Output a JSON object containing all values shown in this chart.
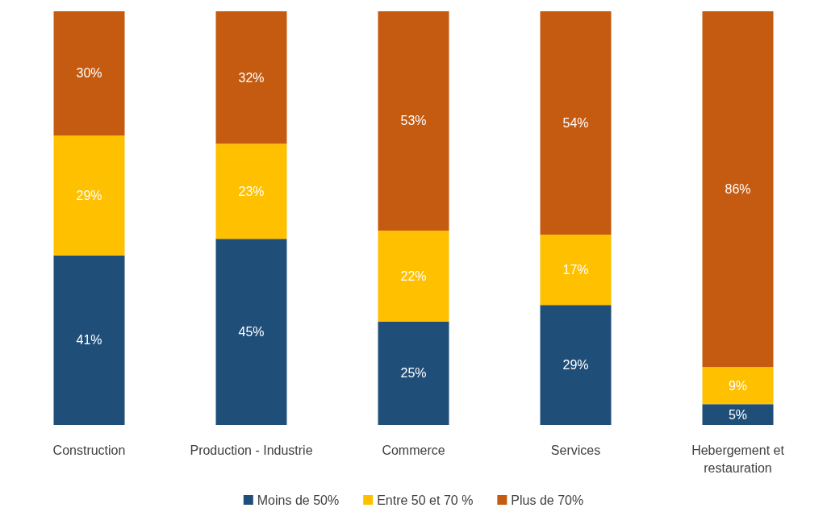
{
  "chart_data": {
    "type": "bar",
    "stacked": true,
    "categories": [
      "Construction",
      "Production - Industrie",
      "Commerce",
      "Services",
      "Hebergement et restauration"
    ],
    "series": [
      {
        "name": "Moins de 50%",
        "color": "#1f4e79",
        "values": [
          41,
          45,
          25,
          29,
          5
        ],
        "value_labels": [
          "41%",
          "45%",
          "25%",
          "29%",
          "5%"
        ]
      },
      {
        "name": "Entre 50 et 70 %",
        "color": "#ffc000",
        "values": [
          29,
          23,
          22,
          17,
          9
        ],
        "value_labels": [
          "29%",
          "23%",
          "22%",
          "17%",
          "9%"
        ]
      },
      {
        "name": "Plus de 70%",
        "color": "#c55a11",
        "values": [
          30,
          32,
          53,
          54,
          86
        ],
        "value_labels": [
          "30%",
          "32%",
          "53%",
          "54%",
          "86%"
        ]
      }
    ],
    "ylim": [
      0,
      100
    ],
    "tick_labels": "x",
    "legend": "bottom"
  }
}
